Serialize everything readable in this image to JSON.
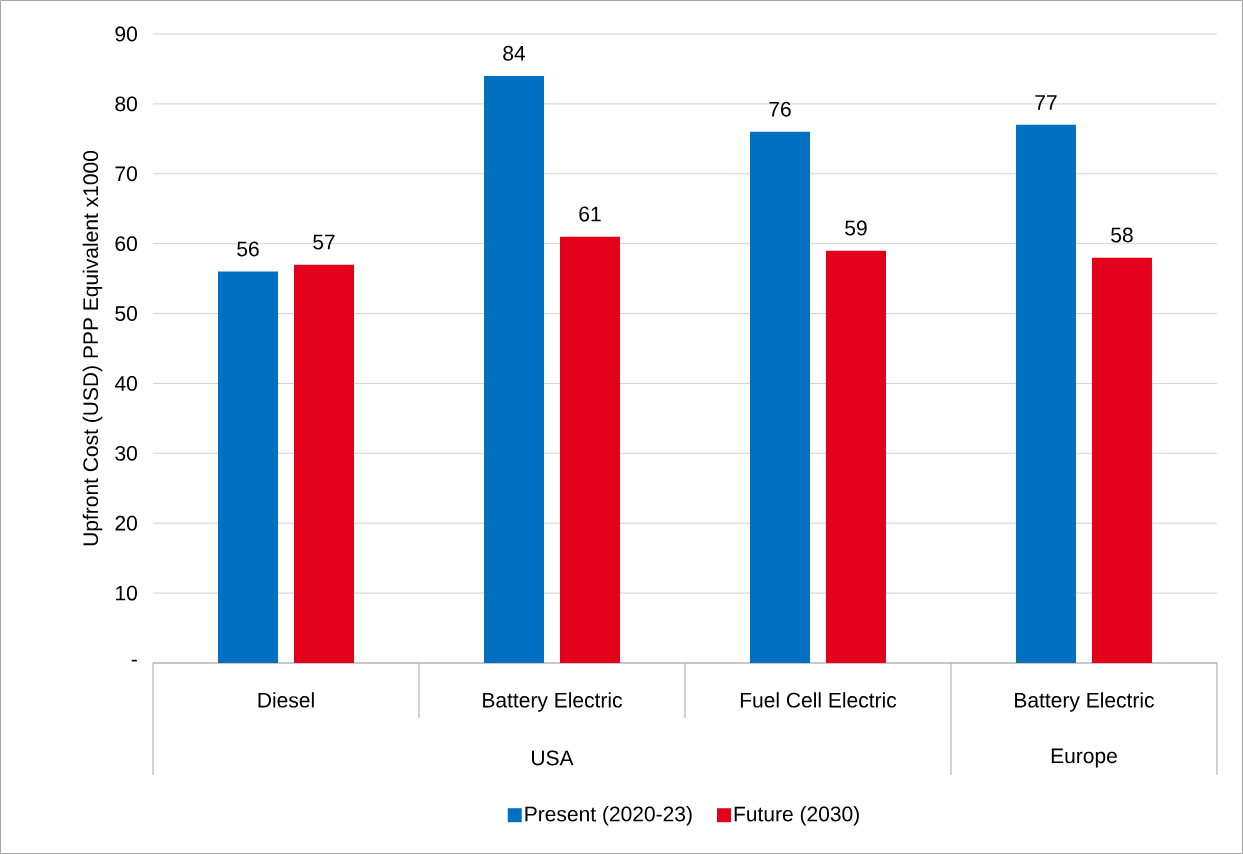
{
  "chart_data": {
    "type": "bar",
    "ylabel": "Upfront Cost (USD) PPP Equivalent x1000",
    "categories": [
      "Diesel",
      "Battery Electric",
      "Fuel Cell Electric",
      "Battery Electric"
    ],
    "series": [
      {
        "name": "Present (2020-23)",
        "color": "#0070c0",
        "values": [
          56,
          84,
          76,
          77
        ]
      },
      {
        "name": "Future (2030)",
        "color": "#e2001a",
        "values": [
          57,
          61,
          59,
          58
        ]
      }
    ],
    "annotations": [
      "USA",
      "Europe"
    ],
    "ylim": [
      0,
      90
    ],
    "yticks": [
      {
        "value": 0,
        "label": "-"
      },
      10,
      20,
      30,
      40,
      50,
      60,
      70,
      80,
      90
    ],
    "grid": "y",
    "legend": "bottom",
    "data_labels": true
  }
}
